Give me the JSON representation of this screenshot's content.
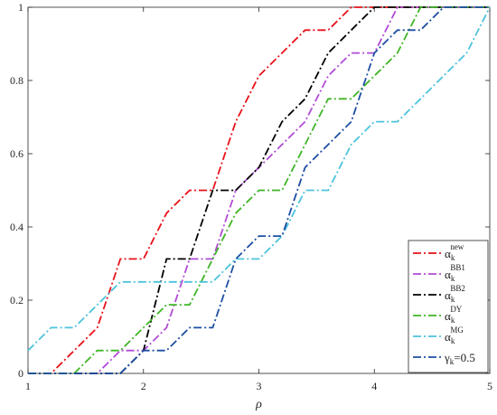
{
  "chart_data": {
    "type": "line",
    "title": "",
    "xlabel": "ρ",
    "ylabel": "",
    "xlim": [
      1,
      5
    ],
    "ylim": [
      0,
      1
    ],
    "xticks": [
      "1",
      "2",
      "3",
      "4",
      "5"
    ],
    "yticks": [
      "0",
      "0.2",
      "0.4",
      "0.6",
      "0.8",
      "1"
    ],
    "grid": false,
    "legend_position": "bottom-right",
    "series": [
      {
        "name": "new",
        "base": "α",
        "sub": "k",
        "sup": "new",
        "color": "#e8121a",
        "points": [
          [
            1.0,
            0.0
          ],
          [
            1.2,
            0.0
          ],
          [
            1.4,
            0.0625
          ],
          [
            1.6,
            0.125
          ],
          [
            1.8,
            0.3125
          ],
          [
            2.0,
            0.3125
          ],
          [
            2.2,
            0.4375
          ],
          [
            2.4,
            0.5
          ],
          [
            2.6,
            0.5
          ],
          [
            2.8,
            0.6875
          ],
          [
            3.0,
            0.8125
          ],
          [
            3.2,
            0.875
          ],
          [
            3.4,
            0.9375
          ],
          [
            3.6,
            0.9375
          ],
          [
            3.8,
            1.0
          ],
          [
            5.0,
            1.0
          ]
        ]
      },
      {
        "name": "BB1",
        "base": "α",
        "sub": "k",
        "sup": "BB1",
        "color": "#b04bd6",
        "points": [
          [
            1.0,
            0.0
          ],
          [
            1.6,
            0.0
          ],
          [
            1.8,
            0.0625
          ],
          [
            2.0,
            0.0625
          ],
          [
            2.2,
            0.125
          ],
          [
            2.4,
            0.3125
          ],
          [
            2.6,
            0.3125
          ],
          [
            2.8,
            0.5
          ],
          [
            3.0,
            0.5625
          ],
          [
            3.2,
            0.625
          ],
          [
            3.4,
            0.6875
          ],
          [
            3.6,
            0.8125
          ],
          [
            3.8,
            0.875
          ],
          [
            4.0,
            0.875
          ],
          [
            4.2,
            1.0
          ],
          [
            5.0,
            1.0
          ]
        ]
      },
      {
        "name": "BB2",
        "base": "α",
        "sub": "k",
        "sup": "BB2",
        "color": "#000000",
        "points": [
          [
            1.0,
            0.0
          ],
          [
            1.8,
            0.0
          ],
          [
            2.0,
            0.0625
          ],
          [
            2.2,
            0.3125
          ],
          [
            2.4,
            0.3125
          ],
          [
            2.6,
            0.5
          ],
          [
            2.8,
            0.5
          ],
          [
            3.0,
            0.5625
          ],
          [
            3.2,
            0.6875
          ],
          [
            3.4,
            0.75
          ],
          [
            3.6,
            0.875
          ],
          [
            3.8,
            0.9375
          ],
          [
            4.0,
            1.0
          ],
          [
            5.0,
            1.0
          ]
        ]
      },
      {
        "name": "DY",
        "base": "α",
        "sub": "k",
        "sup": "DY",
        "color": "#3fb526",
        "points": [
          [
            1.0,
            0.0
          ],
          [
            1.4,
            0.0
          ],
          [
            1.6,
            0.0625
          ],
          [
            1.8,
            0.0625
          ],
          [
            2.0,
            0.125
          ],
          [
            2.2,
            0.1875
          ],
          [
            2.4,
            0.1875
          ],
          [
            2.6,
            0.3125
          ],
          [
            2.8,
            0.4375
          ],
          [
            3.0,
            0.5
          ],
          [
            3.2,
            0.5
          ],
          [
            3.4,
            0.625
          ],
          [
            3.6,
            0.75
          ],
          [
            3.8,
            0.75
          ],
          [
            4.0,
            0.8125
          ],
          [
            4.2,
            0.875
          ],
          [
            4.4,
            1.0
          ],
          [
            5.0,
            1.0
          ]
        ]
      },
      {
        "name": "MG",
        "base": "α",
        "sub": "k",
        "sup": "MG",
        "color": "#4cc3dc",
        "points": [
          [
            1.0,
            0.0625
          ],
          [
            1.2,
            0.125
          ],
          [
            1.4,
            0.125
          ],
          [
            1.6,
            0.1875
          ],
          [
            1.8,
            0.25
          ],
          [
            2.0,
            0.25
          ],
          [
            2.4,
            0.25
          ],
          [
            2.6,
            0.25
          ],
          [
            2.8,
            0.3125
          ],
          [
            3.0,
            0.3125
          ],
          [
            3.2,
            0.375
          ],
          [
            3.4,
            0.5
          ],
          [
            3.6,
            0.5
          ],
          [
            3.8,
            0.625
          ],
          [
            4.0,
            0.6875
          ],
          [
            4.2,
            0.6875
          ],
          [
            4.4,
            0.75
          ],
          [
            4.6,
            0.8125
          ],
          [
            4.8,
            0.875
          ],
          [
            5.0,
            1.0
          ]
        ]
      },
      {
        "name": "γk=0.5",
        "base": "γ",
        "sub": "k",
        "sup": "",
        "suffix": "=0.5",
        "color": "#1e4fa3",
        "points": [
          [
            1.0,
            0.0
          ],
          [
            1.8,
            0.0
          ],
          [
            2.0,
            0.0625
          ],
          [
            2.2,
            0.0625
          ],
          [
            2.4,
            0.125
          ],
          [
            2.6,
            0.125
          ],
          [
            2.8,
            0.3125
          ],
          [
            3.0,
            0.375
          ],
          [
            3.2,
            0.375
          ],
          [
            3.4,
            0.5625
          ],
          [
            3.6,
            0.625
          ],
          [
            3.8,
            0.6875
          ],
          [
            4.0,
            0.875
          ],
          [
            4.2,
            0.9375
          ],
          [
            4.4,
            0.9375
          ],
          [
            4.6,
            1.0
          ],
          [
            5.0,
            1.0
          ]
        ]
      }
    ]
  }
}
